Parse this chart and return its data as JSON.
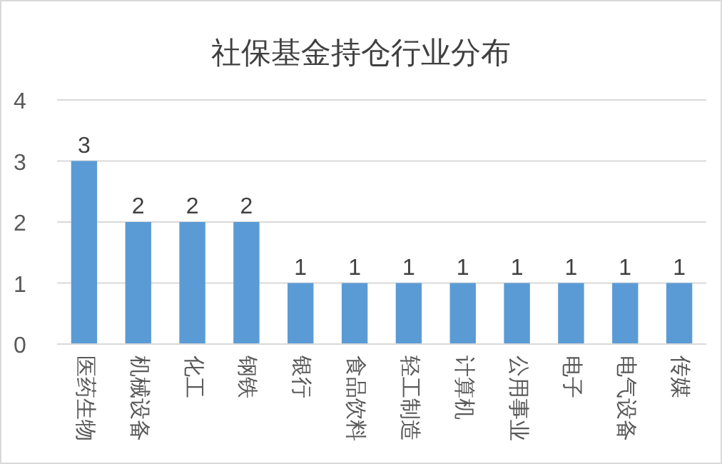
{
  "chart_data": {
    "type": "bar",
    "title": "社保基金持仓行业分布",
    "categories": [
      "医药生物",
      "机械设备",
      "化工",
      "钢铁",
      "银行",
      "食品饮料",
      "轻工制造",
      "计算机",
      "公用事业",
      "电子",
      "电气设备",
      "传媒"
    ],
    "values": [
      3,
      2,
      2,
      2,
      1,
      1,
      1,
      1,
      1,
      1,
      1,
      1
    ],
    "color": "#5b9bd5",
    "ylim": [
      0,
      4
    ],
    "yticks": [
      0,
      1,
      2,
      3,
      4
    ],
    "grid": "y",
    "data_labels": true
  }
}
